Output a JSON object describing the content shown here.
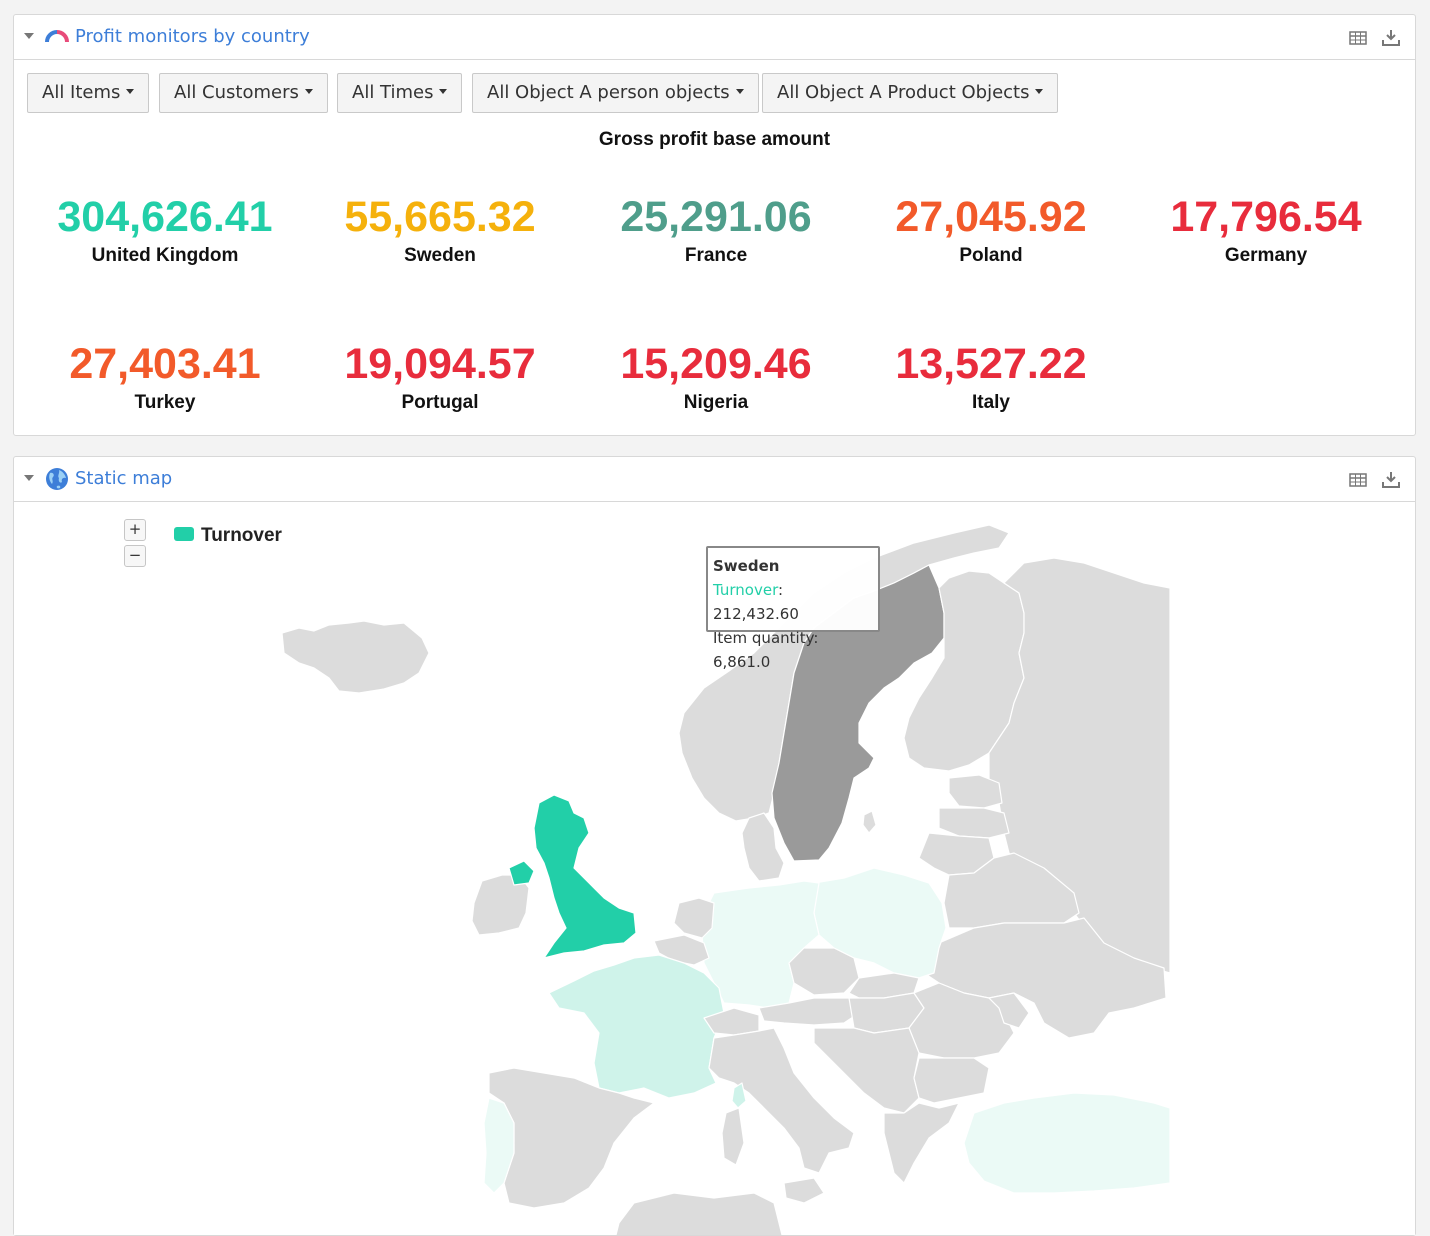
{
  "panels": {
    "profit": {
      "title": "Profit monitors by country",
      "filters": [
        "All Items",
        "All Customers",
        "All Times",
        "All Object A person objects",
        "All Object A Product Objects"
      ],
      "kpi_title": "Gross profit base amount",
      "kpis": [
        {
          "value": "304,626.41",
          "label": "United Kingdom",
          "color": "#22cfa8"
        },
        {
          "value": "55,665.32",
          "label": "Sweden",
          "color": "#f5b10c"
        },
        {
          "value": "25,291.06",
          "label": "France",
          "color": "#4f9e8b"
        },
        {
          "value": "27,045.92",
          "label": "Poland",
          "color": "#f25a2a"
        },
        {
          "value": "17,796.54",
          "label": "Germany",
          "color": "#e82c3c"
        },
        {
          "value": "27,403.41",
          "label": "Turkey",
          "color": "#f25a2a"
        },
        {
          "value": "19,094.57",
          "label": "Portugal",
          "color": "#e82c3c"
        },
        {
          "value": "15,209.46",
          "label": "Nigeria",
          "color": "#e82c3c"
        },
        {
          "value": "13,527.22",
          "label": "Italy",
          "color": "#e82c3c"
        }
      ]
    },
    "map": {
      "title": "Static map",
      "zoom_in": "+",
      "zoom_out": "−",
      "legend_label": "Turnover",
      "tooltip": {
        "title": "Sweden",
        "series_name": "Turnover",
        "series_value": ": 212,432.60",
        "extra": "Item quantity: 6,861.0"
      },
      "colors": {
        "uk": "#22cfa8",
        "sweden_hover": "#9a9a9a",
        "france": "#cff3ea",
        "light": "#ebfaf6",
        "other": "#dcdcdc"
      }
    }
  }
}
